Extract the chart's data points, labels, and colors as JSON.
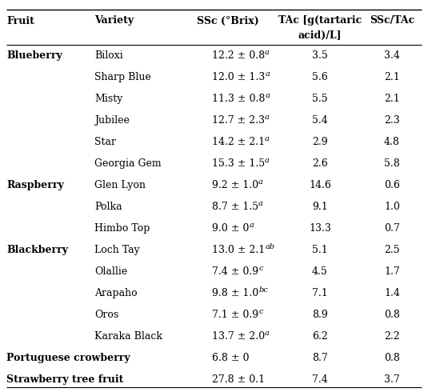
{
  "rows": [
    {
      "fruit": "Blueberry",
      "variety": "Biloxi",
      "ssc_main": "12.2 ± 0.8",
      "ssc_sup": "a",
      "tac": "3.5",
      "ratio": "3.4",
      "fruit_bold": true,
      "span": false
    },
    {
      "fruit": "",
      "variety": "Sharp Blue",
      "ssc_main": "12.0 ± 1.3",
      "ssc_sup": "a",
      "tac": "5.6",
      "ratio": "2.1",
      "fruit_bold": false,
      "span": false
    },
    {
      "fruit": "",
      "variety": "Misty",
      "ssc_main": "11.3 ± 0.8",
      "ssc_sup": "a",
      "tac": "5.5",
      "ratio": "2.1",
      "fruit_bold": false,
      "span": false
    },
    {
      "fruit": "",
      "variety": "Jubilee",
      "ssc_main": "12.7 ± 2.3",
      "ssc_sup": "a",
      "tac": "5.4",
      "ratio": "2.3",
      "fruit_bold": false,
      "span": false
    },
    {
      "fruit": "",
      "variety": "Star",
      "ssc_main": "14.2 ± 2.1",
      "ssc_sup": "a",
      "tac": "2.9",
      "ratio": "4.8",
      "fruit_bold": false,
      "span": false
    },
    {
      "fruit": "",
      "variety": "Georgia Gem",
      "ssc_main": "15.3 ± 1.5",
      "ssc_sup": "a",
      "tac": "2.6",
      "ratio": "5.8",
      "fruit_bold": false,
      "span": false
    },
    {
      "fruit": "Raspberry",
      "variety": "Glen Lyon",
      "ssc_main": "9.2 ± 1.0",
      "ssc_sup": "a",
      "tac": "14.6",
      "ratio": "0.6",
      "fruit_bold": true,
      "span": false
    },
    {
      "fruit": "",
      "variety": "Polka",
      "ssc_main": "8.7 ± 1.5",
      "ssc_sup": "a",
      "tac": "9.1",
      "ratio": "1.0",
      "fruit_bold": false,
      "span": false
    },
    {
      "fruit": "",
      "variety": "Himbo Top",
      "ssc_main": "9.0 ± 0",
      "ssc_sup": "a",
      "tac": "13.3",
      "ratio": "0.7",
      "fruit_bold": false,
      "span": false
    },
    {
      "fruit": "Blackberry",
      "variety": "Loch Tay",
      "ssc_main": "13.0 ± 2.1",
      "ssc_sup": "ab",
      "tac": "5.1",
      "ratio": "2.5",
      "fruit_bold": true,
      "span": false
    },
    {
      "fruit": "",
      "variety": "Olallie",
      "ssc_main": "7.4 ± 0.9",
      "ssc_sup": "c",
      "tac": "4.5",
      "ratio": "1.7",
      "fruit_bold": false,
      "span": false
    },
    {
      "fruit": "",
      "variety": "Arapaho",
      "ssc_main": "9.8 ± 1.0",
      "ssc_sup": "bc",
      "tac": "7.1",
      "ratio": "1.4",
      "fruit_bold": false,
      "span": false
    },
    {
      "fruit": "",
      "variety": "Oros",
      "ssc_main": "7.1 ± 0.9",
      "ssc_sup": "c",
      "tac": "8.9",
      "ratio": "0.8",
      "fruit_bold": false,
      "span": false
    },
    {
      "fruit": "",
      "variety": "Karaka Black",
      "ssc_main": "13.7 ± 2.0",
      "ssc_sup": "a",
      "tac": "6.2",
      "ratio": "2.2",
      "fruit_bold": false,
      "span": false
    },
    {
      "fruit": "Portuguese crowberry",
      "variety": "",
      "ssc_main": "6.8 ± 0",
      "ssc_sup": "",
      "tac": "8.7",
      "ratio": "0.8",
      "fruit_bold": true,
      "span": true
    },
    {
      "fruit": "Strawberry tree fruit",
      "variety": "",
      "ssc_main": "27.8 ± 0.1",
      "ssc_sup": "",
      "tac": "7.4",
      "ratio": "3.7",
      "fruit_bold": true,
      "span": true
    }
  ],
  "header_fontsize": 9.0,
  "row_fontsize": 9.0,
  "sup_fontsize": 7.0,
  "background_color": "#ffffff",
  "text_color": "#000000",
  "line_color": "#000000",
  "fig_width": 5.35,
  "fig_height": 4.9,
  "dpi": 100
}
